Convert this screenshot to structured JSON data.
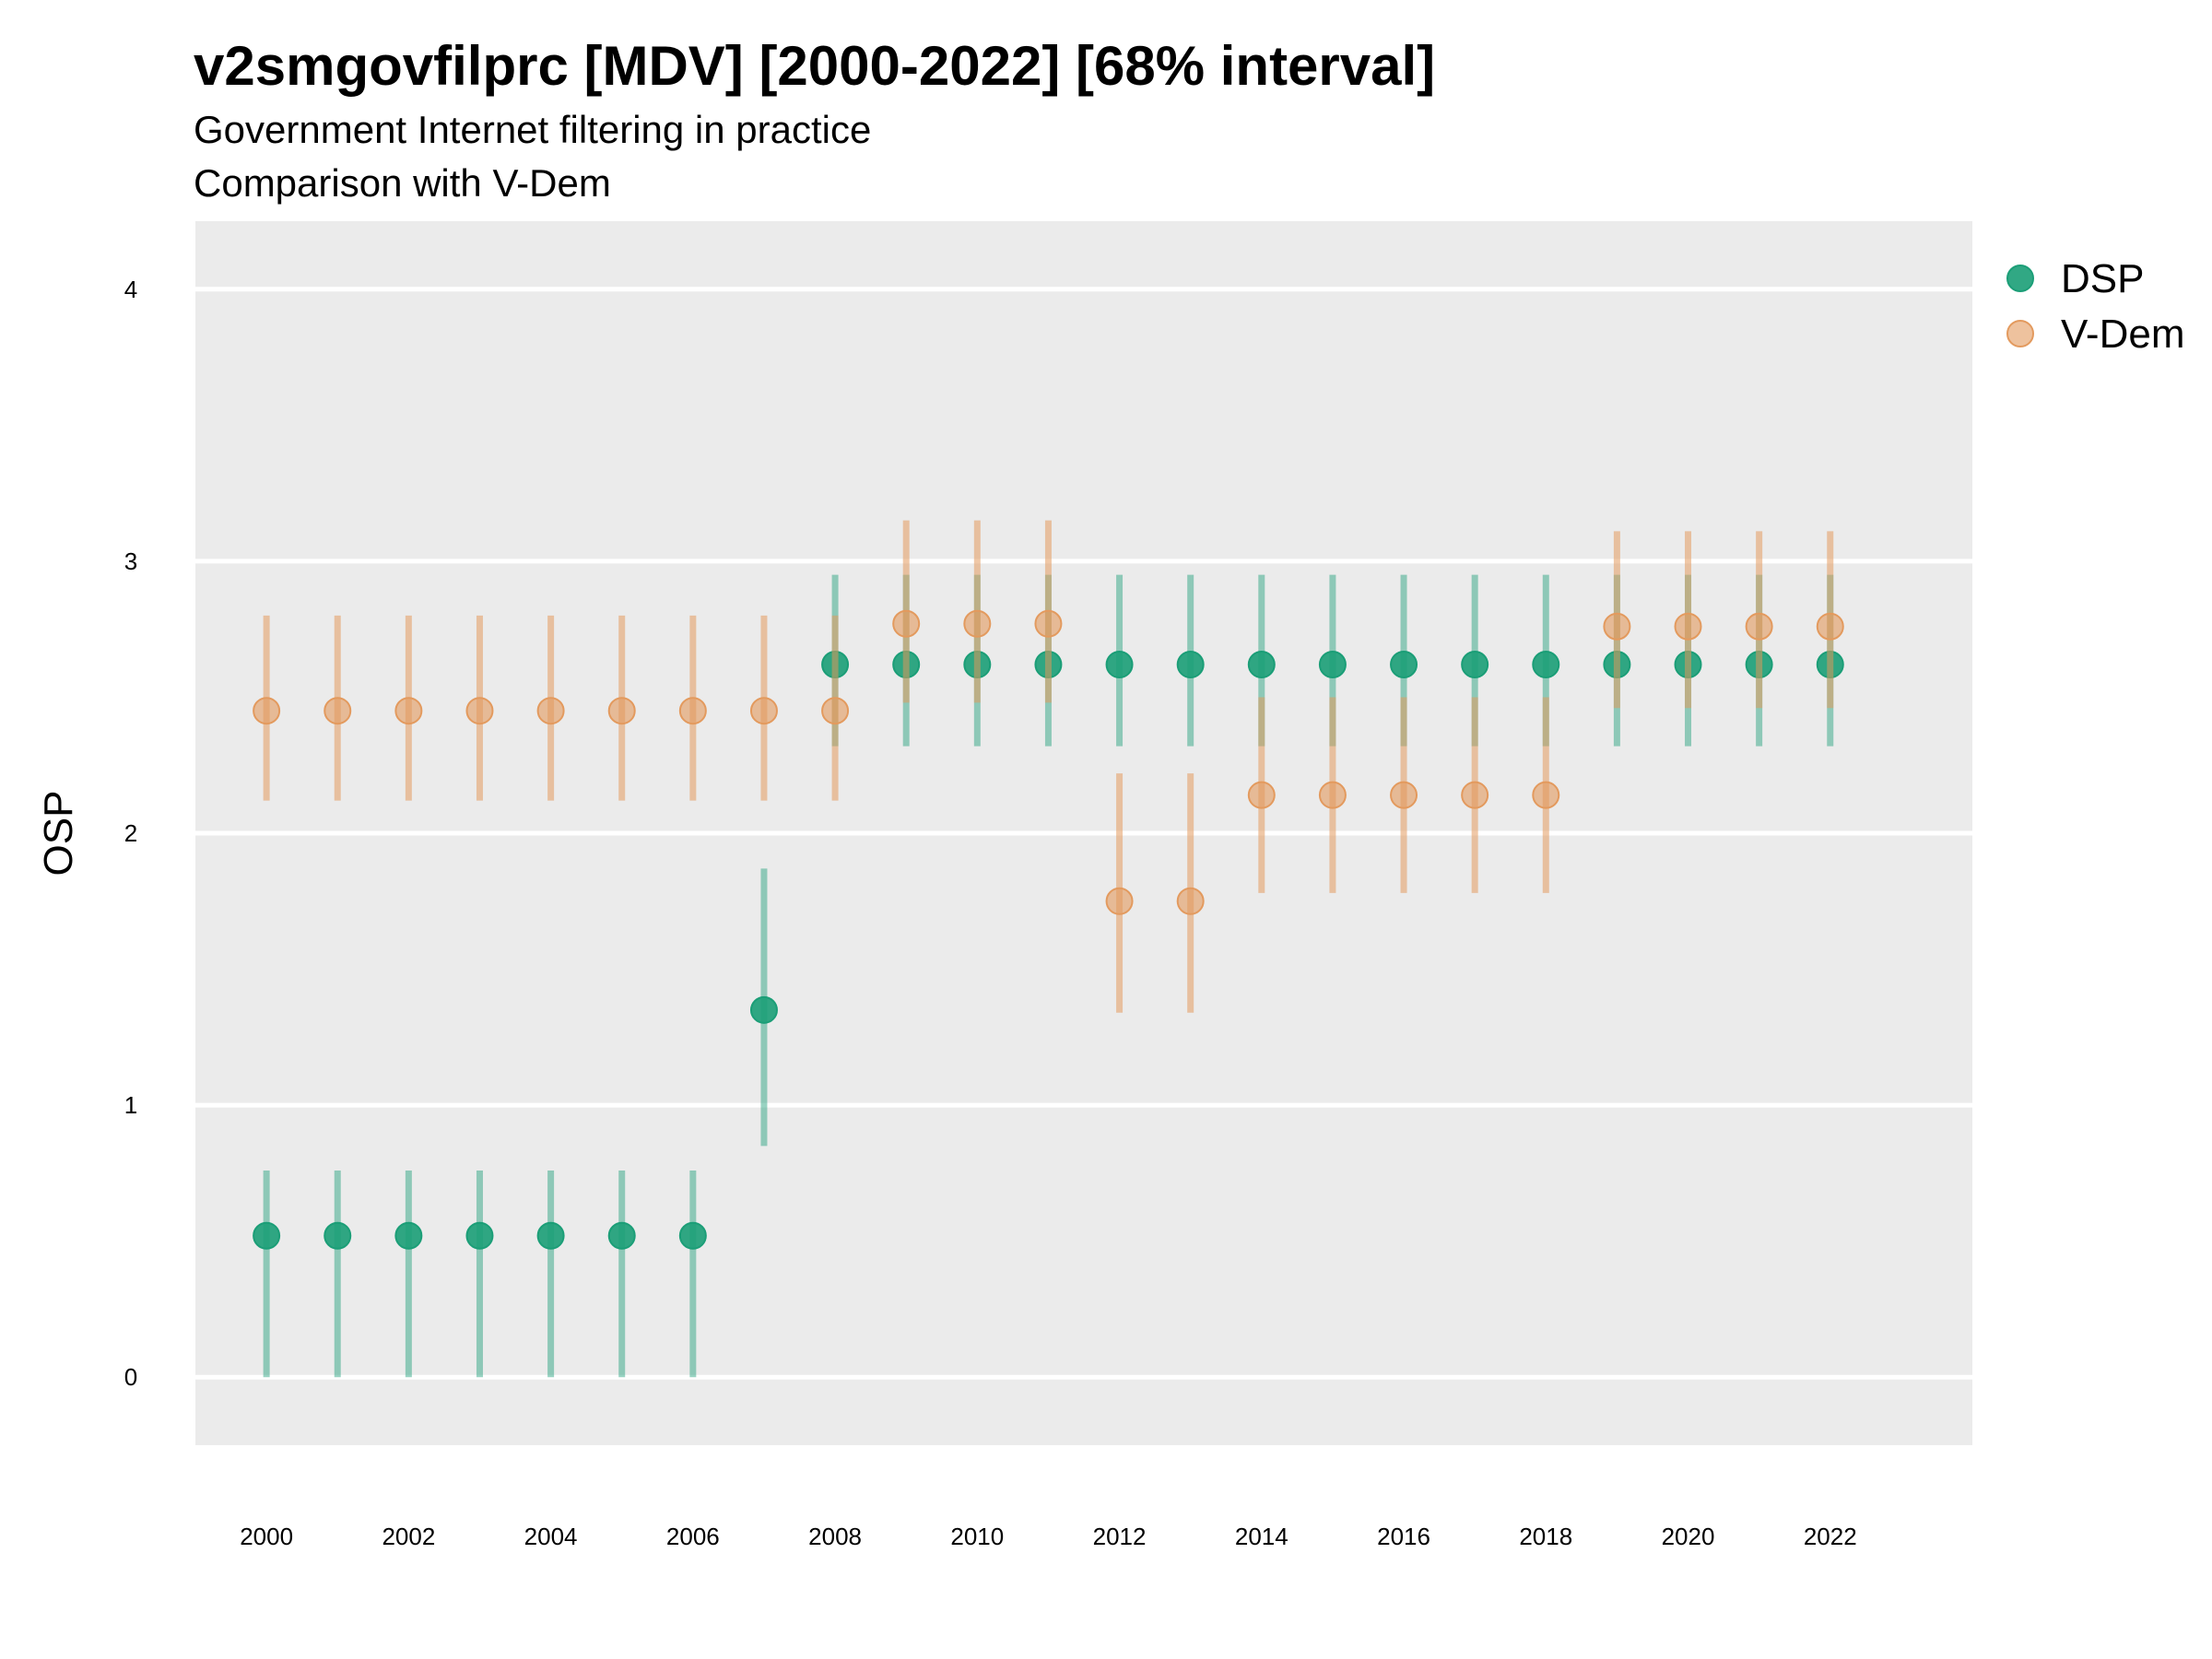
{
  "chart_data": {
    "type": "scatter",
    "title": "v2smgovfilprc [MDV] [2000-2022] [68% interval]",
    "subtitle": "Government Internet filtering in practice",
    "subtitle2": "Comparison with V-Dem",
    "xlabel": "",
    "ylabel": "OSP",
    "xlim": [
      1999,
      2024
    ],
    "ylim": [
      -0.25,
      4.25
    ],
    "x_ticks": [
      2000,
      2002,
      2004,
      2006,
      2008,
      2010,
      2012,
      2014,
      2016,
      2018,
      2020,
      2022
    ],
    "y_ticks": [
      0,
      1,
      2,
      3,
      4
    ],
    "grid": true,
    "legend_position": "top-right",
    "x": [
      2000,
      2001,
      2002,
      2003,
      2004,
      2005,
      2006,
      2007,
      2008,
      2009,
      2010,
      2011,
      2012,
      2013,
      2014,
      2015,
      2016,
      2017,
      2018,
      2019,
      2020,
      2021,
      2022
    ],
    "series": [
      {
        "name": "DSP",
        "color": "#1b9e77",
        "values": [
          0.52,
          0.52,
          0.52,
          0.52,
          0.52,
          0.52,
          0.52,
          1.35,
          2.62,
          2.62,
          2.62,
          2.62,
          2.62,
          2.62,
          2.62,
          2.62,
          2.62,
          2.62,
          2.62,
          2.62,
          2.62,
          2.62,
          2.62
        ],
        "lower": [
          0.0,
          0.0,
          0.0,
          0.0,
          0.0,
          0.0,
          0.0,
          0.85,
          2.32,
          2.32,
          2.32,
          2.32,
          2.32,
          2.32,
          2.32,
          2.32,
          2.32,
          2.32,
          2.32,
          2.32,
          2.32,
          2.32,
          2.32
        ],
        "upper": [
          0.76,
          0.76,
          0.76,
          0.76,
          0.76,
          0.76,
          0.76,
          1.87,
          2.95,
          2.95,
          2.95,
          2.95,
          2.95,
          2.95,
          2.95,
          2.95,
          2.95,
          2.95,
          2.95,
          2.95,
          2.95,
          2.95,
          2.95
        ]
      },
      {
        "name": "V-Dem",
        "color": "#e39a5e",
        "values": [
          2.45,
          2.45,
          2.45,
          2.45,
          2.45,
          2.45,
          2.45,
          2.45,
          2.45,
          2.77,
          2.77,
          2.77,
          1.75,
          1.75,
          2.14,
          2.14,
          2.14,
          2.14,
          2.14,
          2.76,
          2.76,
          2.76,
          2.76
        ],
        "lower": [
          2.12,
          2.12,
          2.12,
          2.12,
          2.12,
          2.12,
          2.12,
          2.12,
          2.12,
          2.48,
          2.48,
          2.48,
          1.34,
          1.34,
          1.78,
          1.78,
          1.78,
          1.78,
          1.78,
          2.46,
          2.46,
          2.46,
          2.46
        ],
        "upper": [
          2.8,
          2.8,
          2.8,
          2.8,
          2.8,
          2.8,
          2.8,
          2.8,
          2.8,
          3.15,
          3.15,
          3.15,
          2.22,
          2.22,
          2.5,
          2.5,
          2.5,
          2.5,
          2.5,
          3.11,
          3.11,
          3.11,
          3.11
        ]
      }
    ]
  }
}
